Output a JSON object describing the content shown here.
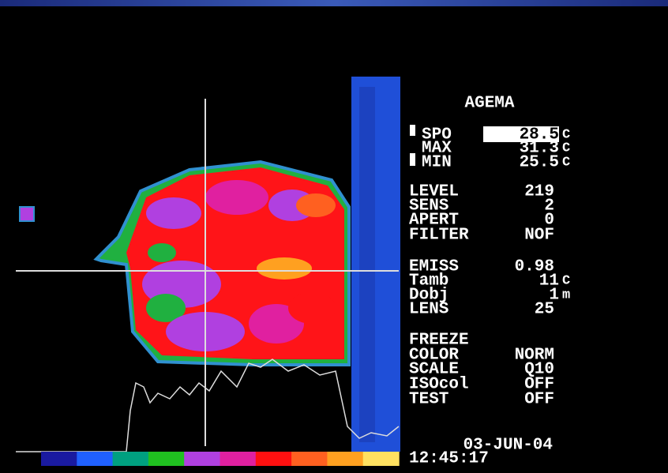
{
  "panel": {
    "title": "AGEMA",
    "readings": [
      {
        "label": "SPO",
        "value": "28.5",
        "unit": "C"
      },
      {
        "label": "MAX",
        "value": "31.3",
        "unit": "C"
      },
      {
        "label": "MIN",
        "value": "25.5",
        "unit": "C"
      }
    ],
    "settings": [
      {
        "label": "LEVEL",
        "value": "219"
      },
      {
        "label": "SENS",
        "value": "2"
      },
      {
        "label": "APERT",
        "value": "0"
      },
      {
        "label": "FILTER",
        "value": "NOF"
      }
    ],
    "optics": [
      {
        "label": "EMISS",
        "value": "0.98"
      },
      {
        "label": "Tamb",
        "value": "11",
        "unit": "C"
      },
      {
        "label": "Dobj",
        "value": "1",
        "unit": "m"
      },
      {
        "label": "LENS",
        "value": "25"
      }
    ],
    "modes": [
      {
        "label": "FREEZE"
      },
      {
        "label": "COLOR",
        "value": "NORM"
      },
      {
        "label": "SCALE",
        "value": "Q10"
      },
      {
        "label": "ISOcol",
        "value": "OFF"
      },
      {
        "label": "TEST",
        "value": "OFF"
      }
    ],
    "date": "03-JUN-04",
    "time": "12:45:17"
  }
}
